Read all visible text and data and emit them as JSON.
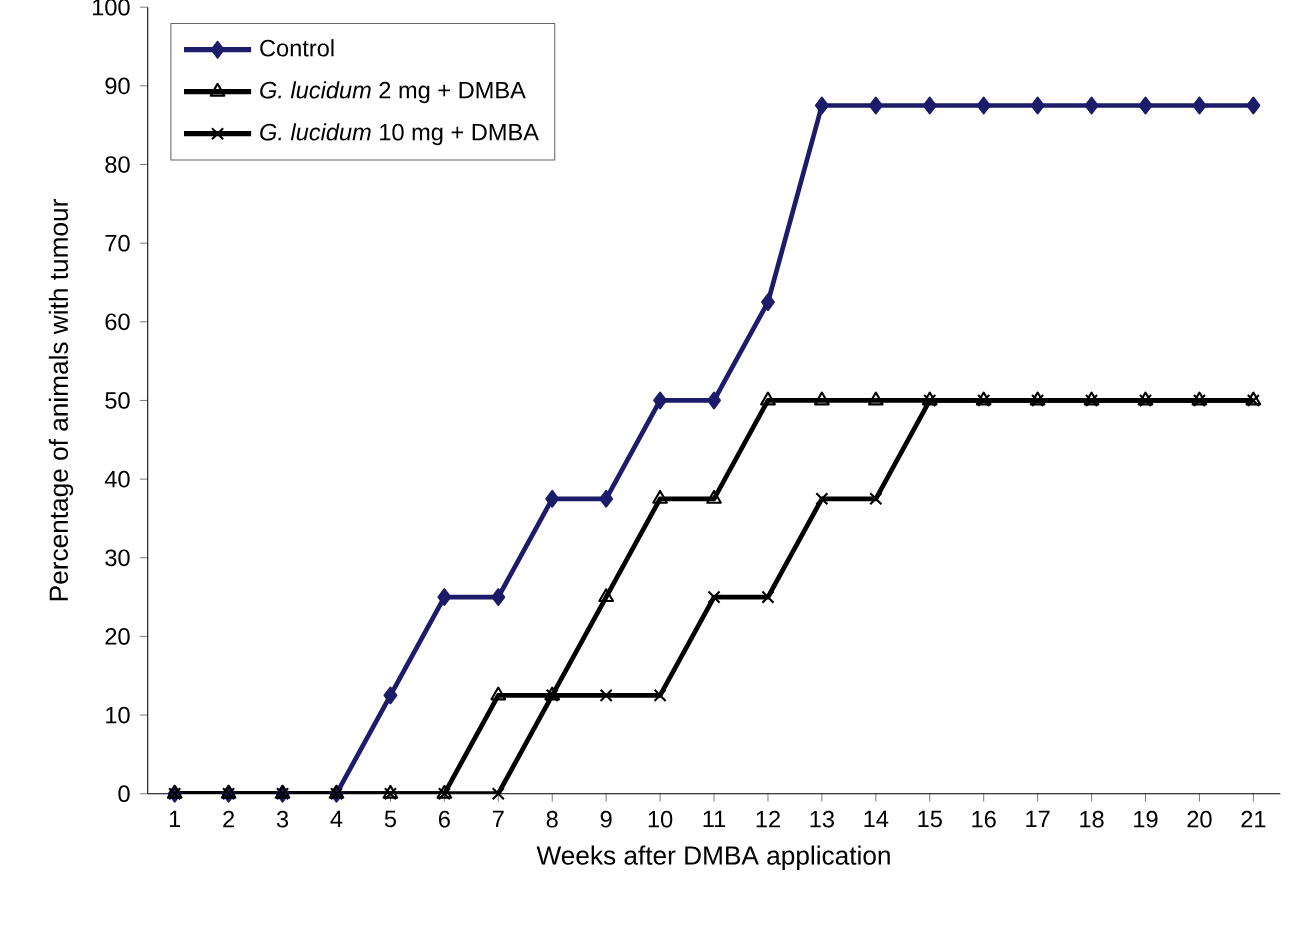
{
  "chart_data": {
    "type": "line",
    "xlabel": "Weeks after DMBA application",
    "ylabel": "Percentage of animals with tumour",
    "categories": [
      "1",
      "2",
      "3",
      "4",
      "5",
      "6",
      "7",
      "8",
      "9",
      "10",
      "11",
      "12",
      "13",
      "14",
      "15",
      "16",
      "17",
      "18",
      "19",
      "20",
      "21"
    ],
    "series": [
      {
        "name": "Control",
        "color": "#1c1c6b",
        "marker": "diamond",
        "values": [
          0,
          0,
          0,
          0,
          12.5,
          25,
          25,
          37.5,
          37.5,
          50,
          50,
          62.5,
          87.5,
          87.5,
          87.5,
          87.5,
          87.5,
          87.5,
          87.5,
          87.5,
          87.5
        ]
      },
      {
        "name": "*G. lucidum* 2 mg + DMBA",
        "color": "#000000",
        "marker": "triangle",
        "values": [
          0,
          0,
          0,
          0,
          0,
          0,
          12.5,
          12.5,
          25,
          37.5,
          37.5,
          50,
          50,
          50,
          50,
          50,
          50,
          50,
          50,
          50,
          50
        ]
      },
      {
        "name": "*G. lucidum* 10 mg + DMBA",
        "color": "#000000",
        "marker": "cross",
        "values": [
          0,
          0,
          0,
          0,
          0,
          0,
          0,
          12.5,
          12.5,
          12.5,
          25,
          25,
          37.5,
          37.5,
          50,
          50,
          50,
          50,
          50,
          50,
          50
        ]
      }
    ],
    "ylim": [
      0,
      100
    ],
    "yticks": [
      0,
      10,
      20,
      30,
      40,
      50,
      60,
      70,
      80,
      90,
      100
    ],
    "legend": "top left",
    "grid": false
  }
}
